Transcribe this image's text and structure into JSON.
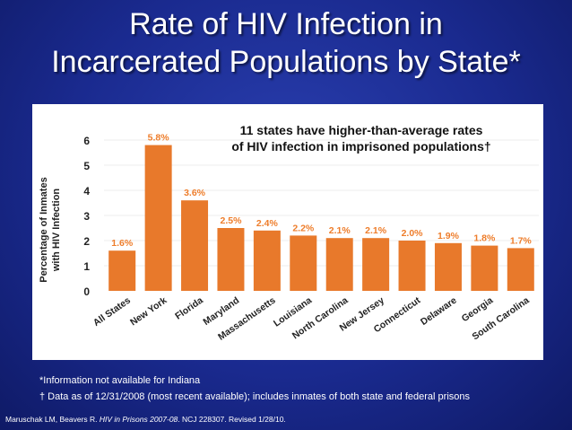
{
  "slide": {
    "title_line1": "Rate of HIV Infection in",
    "title_line2": "Incarcerated Populations by State*",
    "footnote_1": "*Information not available for Indiana",
    "footnote_2": "† Data as of 12/31/2008 (most recent available); includes inmates of both state and federal prisons",
    "citation_prefix": "Maruschak LM, Beavers R. ",
    "citation_italic": "HIV in Prisons 2007-08",
    "citation_suffix": ". NCJ 228307. Revised 1/28/10."
  },
  "colors": {
    "bar": "#e8792b",
    "bar_light": "#f08a3c",
    "label": "#ee7d2b",
    "background": "#1a2a8f",
    "grid": "#eeeeee"
  },
  "chart_data": {
    "type": "bar",
    "annotation_line1": "11 states have higher-than-average rates",
    "annotation_line2": "of HIV infection in imprisoned populations†",
    "ylabel_line1": "Percentage of Inmates",
    "ylabel_line2": "with HIV Infection",
    "xlabel": "",
    "ylim": [
      0,
      6
    ],
    "yticks": [
      0,
      1,
      2,
      3,
      4,
      5,
      6
    ],
    "grid": true,
    "categories": [
      "All States",
      "New York",
      "Florida",
      "Maryland",
      "Massachusetts",
      "Louisiana",
      "North Carolina",
      "New Jersey",
      "Connecticut",
      "Delaware",
      "Georgia",
      "South Carolina"
    ],
    "values": [
      1.6,
      5.8,
      3.6,
      2.5,
      2.4,
      2.2,
      2.1,
      2.1,
      2.0,
      1.9,
      1.8,
      1.7
    ],
    "value_labels": [
      "1.6%",
      "5.8%",
      "3.6%",
      "2.5%",
      "2.4%",
      "2.2%",
      "2.1%",
      "2.1%",
      "2.0%",
      "1.9%",
      "1.8%",
      "1.7%"
    ]
  }
}
